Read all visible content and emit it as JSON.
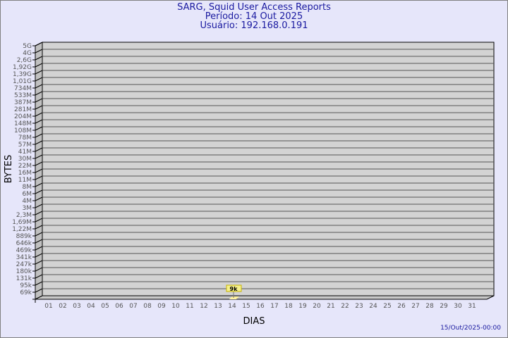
{
  "header": {
    "title": "SARG, Squid User Access Reports",
    "period": "Período: 14 Out 2025",
    "user": "Usuário: 192.168.0.191"
  },
  "footer": {
    "generated": "15/Out/2025-00:00"
  },
  "chart_data": {
    "type": "bar",
    "xlabel": "DIAS",
    "ylabel": "BYTES",
    "y_scale": "log",
    "y_tick_labels": [
      "5G",
      "4G",
      "2,6G",
      "1,92G",
      "1,39G",
      "1,01G",
      "734M",
      "533M",
      "387M",
      "281M",
      "204M",
      "148M",
      "108M",
      "78M",
      "57M",
      "41M",
      "30M",
      "22M",
      "16M",
      "11M",
      "8M",
      "6M",
      "4M",
      "3M",
      "2,3M",
      "1,69M",
      "1,22M",
      "889k",
      "646k",
      "469k",
      "341k",
      "247k",
      "180k",
      "131k",
      "95k",
      "69k"
    ],
    "categories": [
      "01",
      "02",
      "03",
      "04",
      "05",
      "06",
      "07",
      "08",
      "09",
      "10",
      "11",
      "12",
      "13",
      "14",
      "15",
      "16",
      "17",
      "18",
      "19",
      "20",
      "21",
      "22",
      "23",
      "24",
      "25",
      "26",
      "27",
      "28",
      "29",
      "30",
      "31"
    ],
    "bars": [
      {
        "day": "14",
        "label": "9k"
      }
    ],
    "grid": true,
    "colors": {
      "plot_bg": "#d3d3d3",
      "bar": "#fff2a0",
      "label_bg": "#f5f08c",
      "text": "#1a1aa0"
    }
  }
}
